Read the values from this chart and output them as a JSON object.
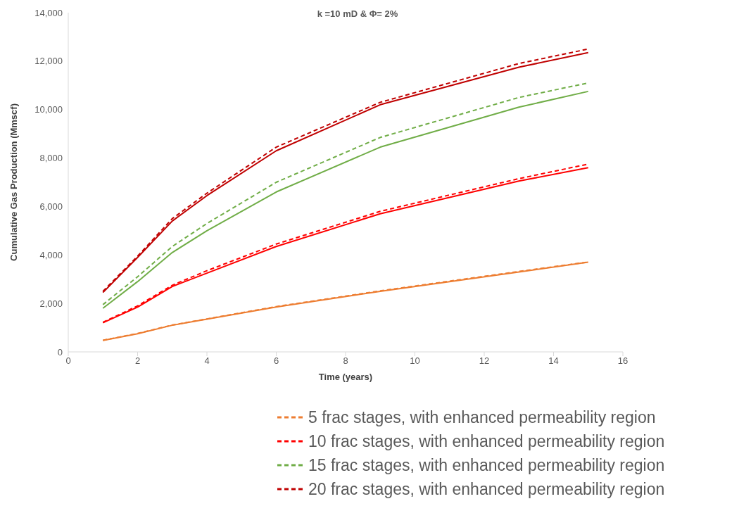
{
  "chart_data": {
    "type": "line",
    "title": "k =10 mD & Φ= 2%",
    "xlabel": "Time (years)",
    "ylabel": "Cumulative Gas Production (Mmscf)",
    "x": [
      1,
      2,
      3,
      4,
      6,
      9,
      13,
      15
    ],
    "xlim": [
      0,
      16
    ],
    "xticks": [
      0,
      2,
      4,
      6,
      8,
      10,
      12,
      14,
      16
    ],
    "ylim": [
      0,
      14000
    ],
    "yticks": [
      0,
      {
        "value": 2000,
        "label": "2,000"
      },
      {
        "value": 4000,
        "label": "4,000"
      },
      {
        "value": 6000,
        "label": "6,000"
      },
      {
        "value": 8000,
        "label": "8,000"
      },
      {
        "value": 10000,
        "label": "10,000"
      },
      {
        "value": 12000,
        "label": "12,000"
      },
      {
        "value": 14000,
        "label": "14,000"
      }
    ],
    "grid": false,
    "legend": "bottom right",
    "marker": "none",
    "series": [
      {
        "color": "#ed7d31",
        "line_style": "solid",
        "values": [
          470,
          750,
          1100,
          1350,
          1850,
          2500,
          3300,
          3700
        ]
      },
      {
        "name": "5 frac stages, with enhanced permeability region",
        "color": "#ed7d31",
        "line_style": "dashed",
        "values": [
          480,
          760,
          1110,
          1360,
          1870,
          2520,
          3320,
          3710
        ]
      },
      {
        "color": "#ff0000",
        "line_style": "solid",
        "values": [
          1200,
          1850,
          2700,
          3250,
          4350,
          5700,
          7050,
          7600
        ]
      },
      {
        "name": "10 frac stages, with enhanced permeability region",
        "color": "#ff0000",
        "line_style": "dashed",
        "values": [
          1220,
          1900,
          2750,
          3350,
          4450,
          5800,
          7150,
          7750
        ]
      },
      {
        "color": "#70ad47",
        "line_style": "solid",
        "values": [
          1800,
          2900,
          4100,
          5000,
          6600,
          8450,
          10100,
          10750
        ]
      },
      {
        "name": "15 frac stages, with enhanced permeability region",
        "color": "#70ad47",
        "line_style": "dashed",
        "values": [
          1950,
          3100,
          4350,
          5300,
          7000,
          8850,
          10500,
          11100
        ]
      },
      {
        "color": "#c00000",
        "line_style": "solid",
        "values": [
          2450,
          3900,
          5400,
          6450,
          8300,
          10200,
          11750,
          12350
        ]
      },
      {
        "name": "20 frac stages, with enhanced permeability region",
        "color": "#c00000",
        "line_style": "dashed",
        "values": [
          2500,
          3950,
          5500,
          6550,
          8450,
          10300,
          11900,
          12500
        ]
      }
    ]
  }
}
